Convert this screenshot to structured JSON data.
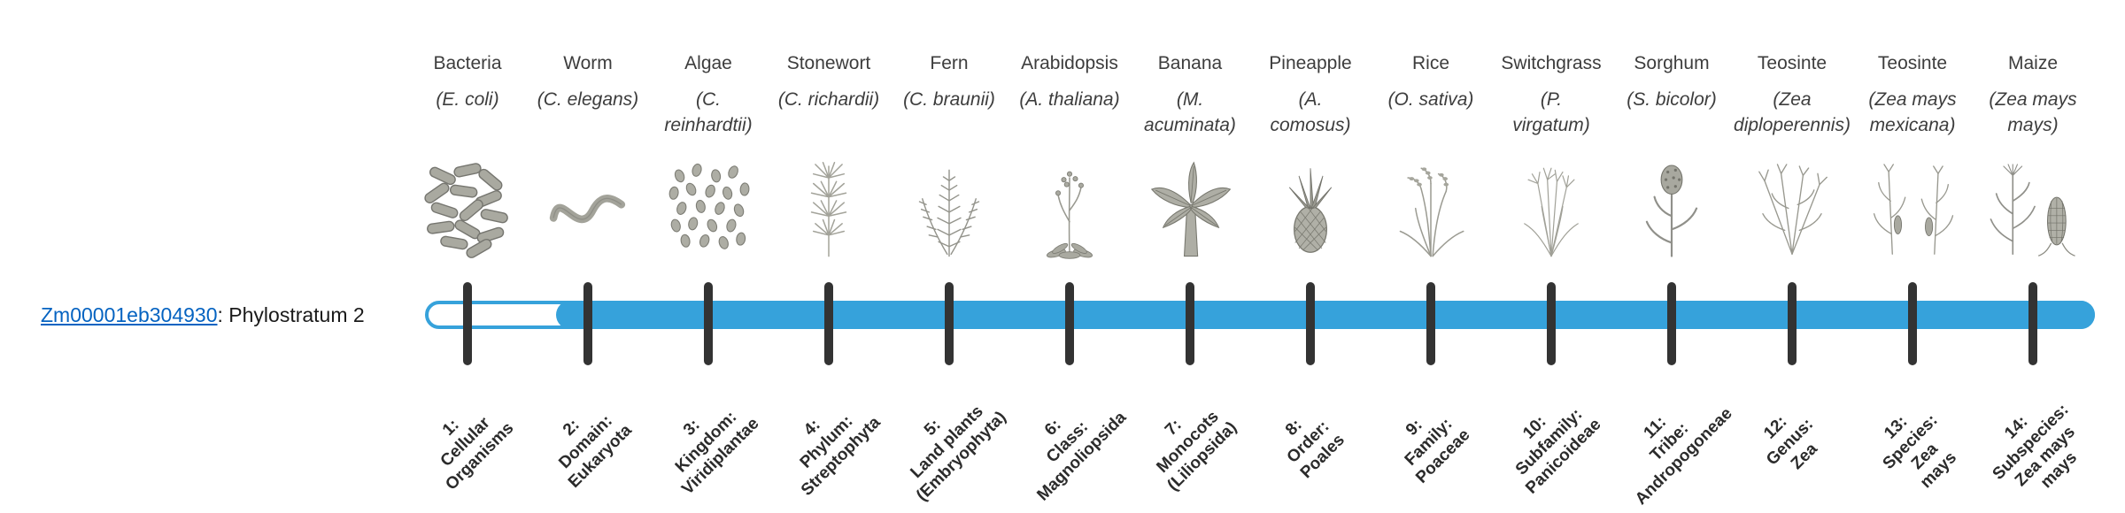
{
  "gene": {
    "id": "Zm00001eb304930",
    "suffix": ": Phylostratum 2",
    "link_color": "#0563C1"
  },
  "timeline": {
    "bar_color": "#36A2DB",
    "tick_color": "#333333",
    "fill_start_stratum": 2,
    "stratum_count": 14
  },
  "strata": [
    {
      "index": 1,
      "organism": "Bacteria",
      "scientific": "(E. coli)",
      "icon": "bacteria-icon",
      "label": "1:\nCellular\nOrganisms"
    },
    {
      "index": 2,
      "organism": "Worm",
      "scientific": "(C. elegans)",
      "icon": "worm-icon",
      "label": "2:\nDomain:\nEukaryota"
    },
    {
      "index": 3,
      "organism": "Algae",
      "scientific": "(C.\nreinhardtii)",
      "icon": "algae-icon",
      "label": "3:\nKingdom:\nViridiplantae"
    },
    {
      "index": 4,
      "organism": "Stonewort",
      "scientific": "(C. richardii)",
      "icon": "stonewort-icon",
      "label": "4:\nPhylum:\nStreptophyta"
    },
    {
      "index": 5,
      "organism": "Fern",
      "scientific": "(C. braunii)",
      "icon": "fern-icon",
      "label": "5:\nLand plants\n(Embryophyta)"
    },
    {
      "index": 6,
      "organism": "Arabidopsis",
      "scientific": "(A. thaliana)",
      "icon": "arabidopsis-icon",
      "label": "6:\nClass:\nMagnoliopsida"
    },
    {
      "index": 7,
      "organism": "Banana",
      "scientific": "(M.\nacuminata)",
      "icon": "banana-icon",
      "label": "7:\nMonocots\n(Liliopsida)"
    },
    {
      "index": 8,
      "organism": "Pineapple",
      "scientific": "(A.\ncomosus)",
      "icon": "pineapple-icon",
      "label": "8:\nOrder:\nPoales"
    },
    {
      "index": 9,
      "organism": "Rice",
      "scientific": "(O. sativa)",
      "icon": "rice-icon",
      "label": "9:\nFamily:\nPoaceae"
    },
    {
      "index": 10,
      "organism": "Switchgrass",
      "scientific": "(P.\nvirgatum)",
      "icon": "switchgrass-icon",
      "label": "10:\nSubfamily:\nPanicoideae"
    },
    {
      "index": 11,
      "organism": "Sorghum",
      "scientific": "(S. bicolor)",
      "icon": "sorghum-icon",
      "label": "11:\nTribe:\nAndropogoneae"
    },
    {
      "index": 12,
      "organism": "Teosinte",
      "scientific": "(Zea\ndiploperennis)",
      "icon": "teosinte-diploperennis-icon",
      "label": "12:\nGenus:\nZea"
    },
    {
      "index": 13,
      "organism": "Teosinte",
      "scientific": "(Zea mays\nmexicana)",
      "icon": "teosinte-mexicana-icon",
      "label": "13:\nSpecies:\nZea\nmays"
    },
    {
      "index": 14,
      "organism": "Maize",
      "scientific": "(Zea mays\nmays)",
      "icon": "maize-icon",
      "label": "14:\nSubspecies:\nZea mays\nmays"
    }
  ],
  "chart_data": {
    "type": "timeline",
    "title": "",
    "gene": "Zm00001eb304930",
    "phylostratum": 2,
    "bar_fill_range": [
      2,
      14
    ],
    "categories": [
      "1: Cellular Organisms",
      "2: Domain: Eukaryota",
      "3: Kingdom: Viridiplantae",
      "4: Phylum: Streptophyta",
      "5: Land plants (Embryophyta)",
      "6: Class: Magnoliopsida",
      "7: Monocots (Liliopsida)",
      "8: Order: Poales",
      "9: Family: Poaceae",
      "10: Subfamily: Panicoideae",
      "11: Tribe: Andropogoneae",
      "12: Genus: Zea",
      "13: Species: Zea mays",
      "14: Subspecies: Zea mays mays"
    ],
    "representative_organisms": [
      "Bacteria (E. coli)",
      "Worm (C. elegans)",
      "Algae (C. reinhardtii)",
      "Stonewort (C. richardii)",
      "Fern (C. braunii)",
      "Arabidopsis (A. thaliana)",
      "Banana (M. acuminata)",
      "Pineapple (A. comosus)",
      "Rice (O. sativa)",
      "Switchgrass (P. virgatum)",
      "Sorghum (S. bicolor)",
      "Teosinte (Zea diploperennis)",
      "Teosinte (Zea mays mexicana)",
      "Maize (Zea mays mays)"
    ],
    "legend_position": "none",
    "grid": false
  }
}
